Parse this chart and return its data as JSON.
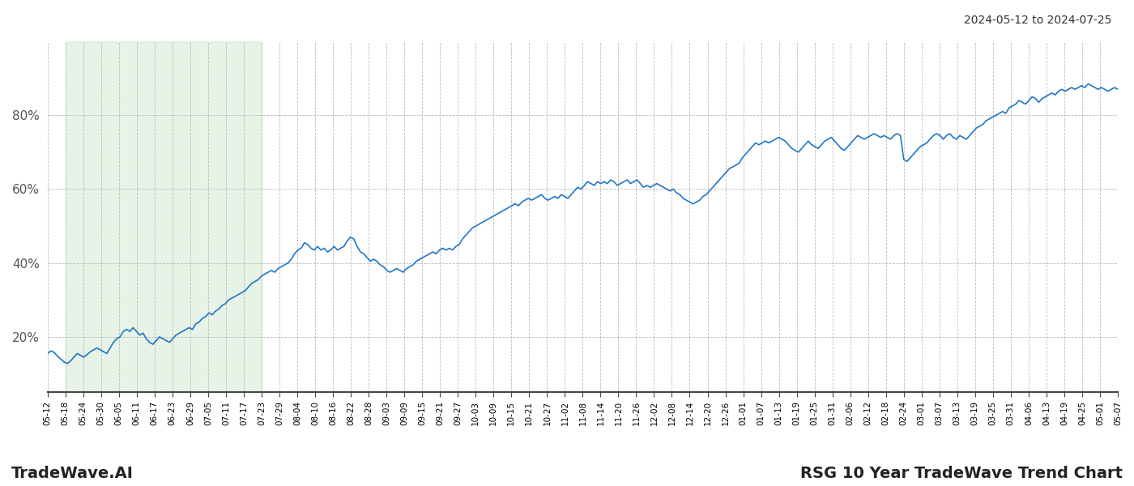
{
  "title_top_right": "2024-05-12 to 2024-07-25",
  "title_bottom_left": "TradeWave.AI",
  "title_bottom_right": "RSG 10 Year TradeWave Trend Chart",
  "line_color": "#2176c7",
  "line_width": 1.2,
  "shading_color": "#c8e6c9",
  "shading_alpha": 0.45,
  "bg_color": "#ffffff",
  "grid_color": "#bbbbbb",
  "yticks": [
    20,
    40,
    60,
    80
  ],
  "ylim": [
    5,
    100
  ],
  "x_labels": [
    "05-12",
    "05-18",
    "05-24",
    "05-30",
    "06-05",
    "06-11",
    "06-17",
    "06-23",
    "06-29",
    "07-05",
    "07-11",
    "07-17",
    "07-23",
    "07-29",
    "08-04",
    "08-10",
    "08-16",
    "08-22",
    "08-28",
    "09-03",
    "09-09",
    "09-15",
    "09-21",
    "09-27",
    "10-03",
    "10-09",
    "10-15",
    "10-21",
    "10-27",
    "11-02",
    "11-08",
    "11-14",
    "11-20",
    "11-26",
    "12-02",
    "12-08",
    "12-14",
    "12-20",
    "12-26",
    "01-01",
    "01-07",
    "01-13",
    "01-19",
    "01-25",
    "01-31",
    "02-06",
    "02-12",
    "02-18",
    "02-24",
    "03-01",
    "03-07",
    "03-13",
    "03-19",
    "03-25",
    "03-31",
    "04-06",
    "04-13",
    "04-19",
    "04-25",
    "05-01",
    "05-07"
  ],
  "shading_label_start": "05-18",
  "shading_label_end": "07-23",
  "values": [
    15.5,
    16.2,
    15.8,
    14.8,
    14.0,
    13.2,
    12.8,
    13.5,
    14.5,
    15.5,
    15.0,
    14.5,
    15.2,
    16.0,
    16.5,
    17.0,
    16.5,
    16.0,
    15.5,
    17.0,
    18.5,
    19.5,
    20.0,
    21.5,
    22.0,
    21.5,
    22.5,
    21.5,
    20.5,
    21.0,
    19.5,
    18.5,
    18.0,
    19.0,
    20.0,
    19.5,
    19.0,
    18.5,
    19.5,
    20.5,
    21.0,
    21.5,
    22.0,
    22.5,
    22.0,
    23.5,
    24.0,
    25.0,
    25.5,
    26.5,
    26.0,
    27.0,
    27.5,
    28.5,
    29.0,
    30.0,
    30.5,
    31.0,
    31.5,
    32.0,
    32.5,
    33.5,
    34.5,
    35.0,
    35.5,
    36.5,
    37.0,
    37.5,
    38.0,
    37.5,
    38.5,
    39.0,
    39.5,
    40.0,
    41.0,
    42.5,
    43.5,
    44.0,
    45.5,
    45.0,
    44.0,
    43.5,
    44.5,
    43.5,
    44.0,
    43.0,
    43.5,
    44.5,
    43.5,
    44.0,
    44.5,
    46.0,
    47.0,
    46.5,
    44.5,
    43.0,
    42.5,
    41.5,
    40.5,
    41.0,
    40.5,
    39.5,
    39.0,
    38.0,
    37.5,
    38.0,
    38.5,
    38.0,
    37.5,
    38.5,
    39.0,
    39.5,
    40.5,
    41.0,
    41.5,
    42.0,
    42.5,
    43.0,
    42.5,
    43.5,
    44.0,
    43.5,
    44.0,
    43.5,
    44.5,
    45.0,
    46.5,
    47.5,
    48.5,
    49.5,
    50.0,
    50.5,
    51.0,
    51.5,
    52.0,
    52.5,
    53.0,
    53.5,
    54.0,
    54.5,
    55.0,
    55.5,
    56.0,
    55.5,
    56.5,
    57.0,
    57.5,
    57.0,
    57.5,
    58.0,
    58.5,
    57.5,
    57.0,
    57.5,
    58.0,
    57.5,
    58.5,
    58.0,
    57.5,
    58.5,
    59.5,
    60.5,
    60.0,
    61.0,
    62.0,
    61.5,
    61.0,
    62.0,
    61.5,
    62.0,
    61.5,
    62.5,
    62.0,
    61.0,
    61.5,
    62.0,
    62.5,
    61.5,
    62.0,
    62.5,
    61.5,
    60.5,
    61.0,
    60.5,
    61.0,
    61.5,
    61.0,
    60.5,
    60.0,
    59.5,
    60.0,
    59.0,
    58.5,
    57.5,
    57.0,
    56.5,
    56.0,
    56.5,
    57.0,
    58.0,
    58.5,
    59.5,
    60.5,
    61.5,
    62.5,
    63.5,
    64.5,
    65.5,
    66.0,
    66.5,
    67.0,
    68.5,
    69.5,
    70.5,
    71.5,
    72.5,
    72.0,
    72.5,
    73.0,
    72.5,
    73.0,
    73.5,
    74.0,
    73.5,
    73.0,
    72.0,
    71.0,
    70.5,
    70.0,
    71.0,
    72.0,
    73.0,
    72.0,
    71.5,
    71.0,
    72.0,
    73.0,
    73.5,
    74.0,
    73.0,
    72.0,
    71.0,
    70.5,
    71.5,
    72.5,
    73.5,
    74.5,
    74.0,
    73.5,
    74.0,
    74.5,
    75.0,
    74.5,
    74.0,
    74.5,
    74.0,
    73.5,
    74.5,
    75.0,
    74.5,
    68.0,
    67.5,
    68.5,
    69.5,
    70.5,
    71.5,
    72.0,
    72.5,
    73.5,
    74.5,
    75.0,
    74.5,
    73.5,
    74.5,
    75.0,
    74.0,
    73.5,
    74.5,
    74.0,
    73.5,
    74.5,
    75.5,
    76.5,
    77.0,
    77.5,
    78.5,
    79.0,
    79.5,
    80.0,
    80.5,
    81.0,
    80.5,
    82.0,
    82.5,
    83.0,
    84.0,
    83.5,
    83.0,
    84.0,
    85.0,
    84.5,
    83.5,
    84.5,
    85.0,
    85.5,
    86.0,
    85.5,
    86.5,
    87.0,
    86.5,
    87.0,
    87.5,
    87.0,
    87.5,
    88.0,
    87.5,
    88.5,
    88.0,
    87.5,
    87.0,
    87.5,
    87.0,
    86.5,
    87.0,
    87.5,
    87.0
  ]
}
